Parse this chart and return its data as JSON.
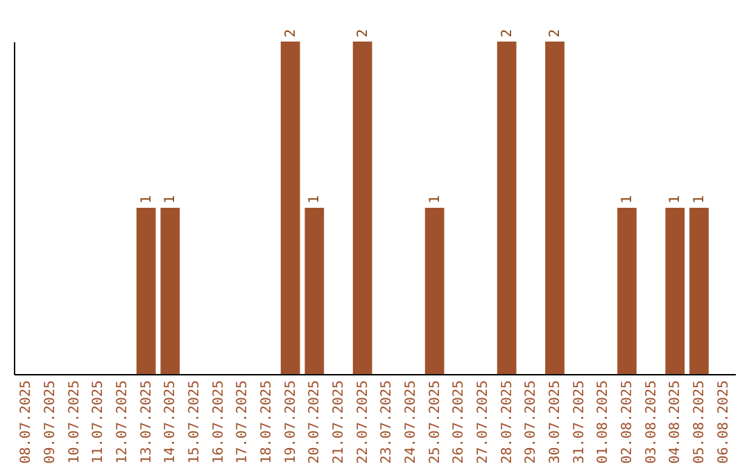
{
  "chart_data": {
    "type": "bar",
    "categories": [
      "08.07.2025",
      "09.07.2025",
      "10.07.2025",
      "11.07.2025",
      "12.07.2025",
      "13.07.2025",
      "14.07.2025",
      "15.07.2025",
      "16.07.2025",
      "17.07.2025",
      "18.07.2025",
      "19.07.2025",
      "20.07.2025",
      "21.07.2025",
      "22.07.2025",
      "23.07.2025",
      "24.07.2025",
      "25.07.2025",
      "26.07.2025",
      "27.07.2025",
      "28.07.2025",
      "29.07.2025",
      "30.07.2025",
      "31.07.2025",
      "01.08.2025",
      "02.08.2025",
      "03.08.2025",
      "04.08.2025",
      "05.08.2025",
      "06.08.2025"
    ],
    "values": [
      0,
      0,
      0,
      0,
      0,
      1,
      1,
      0,
      0,
      0,
      0,
      2,
      1,
      0,
      2,
      0,
      0,
      1,
      0,
      0,
      2,
      0,
      2,
      0,
      0,
      1,
      0,
      1,
      1,
      0
    ],
    "value_labels": [
      null,
      null,
      null,
      null,
      null,
      "1",
      "1",
      null,
      null,
      null,
      null,
      "2",
      "1",
      null,
      "2",
      null,
      null,
      "1",
      null,
      null,
      "2",
      null,
      "2",
      null,
      null,
      "1",
      null,
      "1",
      "1",
      null
    ],
    "color": "#a0522d",
    "ylim": [
      0,
      2
    ],
    "tick_labels": "x",
    "grid": false
  }
}
